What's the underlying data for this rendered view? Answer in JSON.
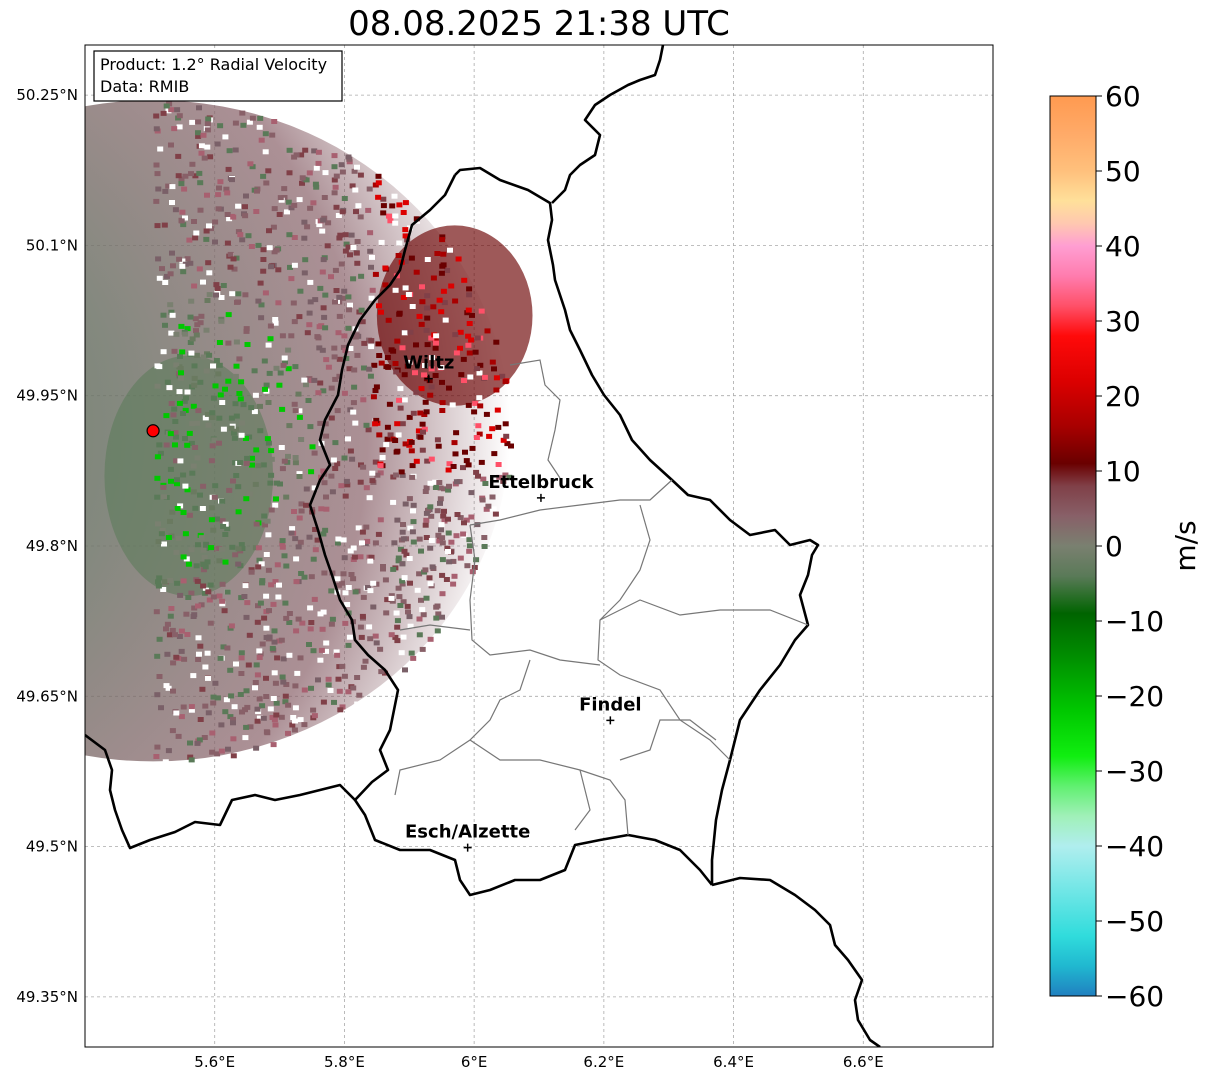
{
  "title": "08.08.2025 21:38 UTC",
  "info_box": {
    "line1": "Product: 1.2° Radial Velocity",
    "line2": "Data: RMIB"
  },
  "map": {
    "lon_range": [
      5.4,
      6.8
    ],
    "lat_range": [
      49.3,
      50.3
    ],
    "lon_ticks": [
      {
        "value": 5.6,
        "label": "5.6°E"
      },
      {
        "value": 5.8,
        "label": "5.8°E"
      },
      {
        "value": 6.0,
        "label": "6°E"
      },
      {
        "value": 6.2,
        "label": "6.2°E"
      },
      {
        "value": 6.4,
        "label": "6.4°E"
      },
      {
        "value": 6.6,
        "label": "6.6°E"
      }
    ],
    "lat_ticks": [
      {
        "value": 50.25,
        "label": "50.25°N"
      },
      {
        "value": 50.1,
        "label": "50.1°N"
      },
      {
        "value": 49.95,
        "label": "49.95°N"
      },
      {
        "value": 49.8,
        "label": "49.8°N"
      },
      {
        "value": 49.65,
        "label": "49.65°N"
      },
      {
        "value": 49.5,
        "label": "49.5°N"
      },
      {
        "value": 49.35,
        "label": "49.35°N"
      }
    ],
    "radar_site": {
      "lon": 5.505,
      "lat": 49.915,
      "color": "#ff0000"
    },
    "cities": [
      {
        "name": "Wiltz",
        "lon": 5.93,
        "lat": 49.967
      },
      {
        "name": "Ettelbruck",
        "lon": 6.103,
        "lat": 49.848
      },
      {
        "name": "Findel",
        "lon": 6.21,
        "lat": 49.626
      },
      {
        "name": "Esch/Alzette",
        "lon": 5.99,
        "lat": 49.499
      }
    ]
  },
  "colorbar": {
    "unit": "m/s",
    "range": [
      -60,
      60
    ],
    "ticks": [
      {
        "value": 60,
        "label": "60"
      },
      {
        "value": 50,
        "label": "50"
      },
      {
        "value": 40,
        "label": "40"
      },
      {
        "value": 30,
        "label": "30"
      },
      {
        "value": 20,
        "label": "20"
      },
      {
        "value": 10,
        "label": "10"
      },
      {
        "value": 0,
        "label": "0"
      },
      {
        "value": -10,
        "label": "−10"
      },
      {
        "value": -20,
        "label": "−20"
      },
      {
        "value": -30,
        "label": "−30"
      },
      {
        "value": -40,
        "label": "−40"
      },
      {
        "value": -50,
        "label": "−50"
      },
      {
        "value": -60,
        "label": "−60"
      }
    ],
    "stops": [
      {
        "value": 60,
        "color": "#ff9a50"
      },
      {
        "value": 55,
        "color": "#ffaa68"
      },
      {
        "value": 50,
        "color": "#ffc07c"
      },
      {
        "value": 46,
        "color": "#ffe09a"
      },
      {
        "value": 43,
        "color": "#ffc8b0"
      },
      {
        "value": 40,
        "color": "#ff9ed2"
      },
      {
        "value": 36,
        "color": "#ff7cae"
      },
      {
        "value": 32,
        "color": "#ff5068"
      },
      {
        "value": 28,
        "color": "#ff0a0a"
      },
      {
        "value": 22,
        "color": "#dc0000"
      },
      {
        "value": 16,
        "color": "#a80000"
      },
      {
        "value": 11,
        "color": "#6a0000"
      },
      {
        "value": 8,
        "color": "#804048"
      },
      {
        "value": 4,
        "color": "#886068"
      },
      {
        "value": 0,
        "color": "#7a8070"
      },
      {
        "value": -4,
        "color": "#5a7a58"
      },
      {
        "value": -9,
        "color": "#006400"
      },
      {
        "value": -15,
        "color": "#009000"
      },
      {
        "value": -22,
        "color": "#00c800"
      },
      {
        "value": -28,
        "color": "#10ee10"
      },
      {
        "value": -32,
        "color": "#60f070"
      },
      {
        "value": -36,
        "color": "#a0f0b8"
      },
      {
        "value": -40,
        "color": "#b0eeee"
      },
      {
        "value": -46,
        "color": "#70e6e6"
      },
      {
        "value": -52,
        "color": "#30dcdc"
      },
      {
        "value": -56,
        "color": "#20b8d0"
      },
      {
        "value": -60,
        "color": "#2080c0"
      }
    ]
  },
  "echo_regions": [
    {
      "kind": "main",
      "lon": 5.505,
      "lat": 49.915,
      "r_lon": 0.55,
      "r_lat": 0.33,
      "start_deg": -90,
      "end_deg": 90,
      "color": "#886870"
    },
    {
      "kind": "receding",
      "lon": 5.97,
      "lat": 50.03,
      "r_lon": 0.12,
      "r_lat": 0.09,
      "color": "#6a0000"
    },
    {
      "kind": "approaching",
      "lon": 5.56,
      "lat": 49.87,
      "r_lon": 0.13,
      "r_lat": 0.12,
      "color": "#5a7a58"
    }
  ]
}
